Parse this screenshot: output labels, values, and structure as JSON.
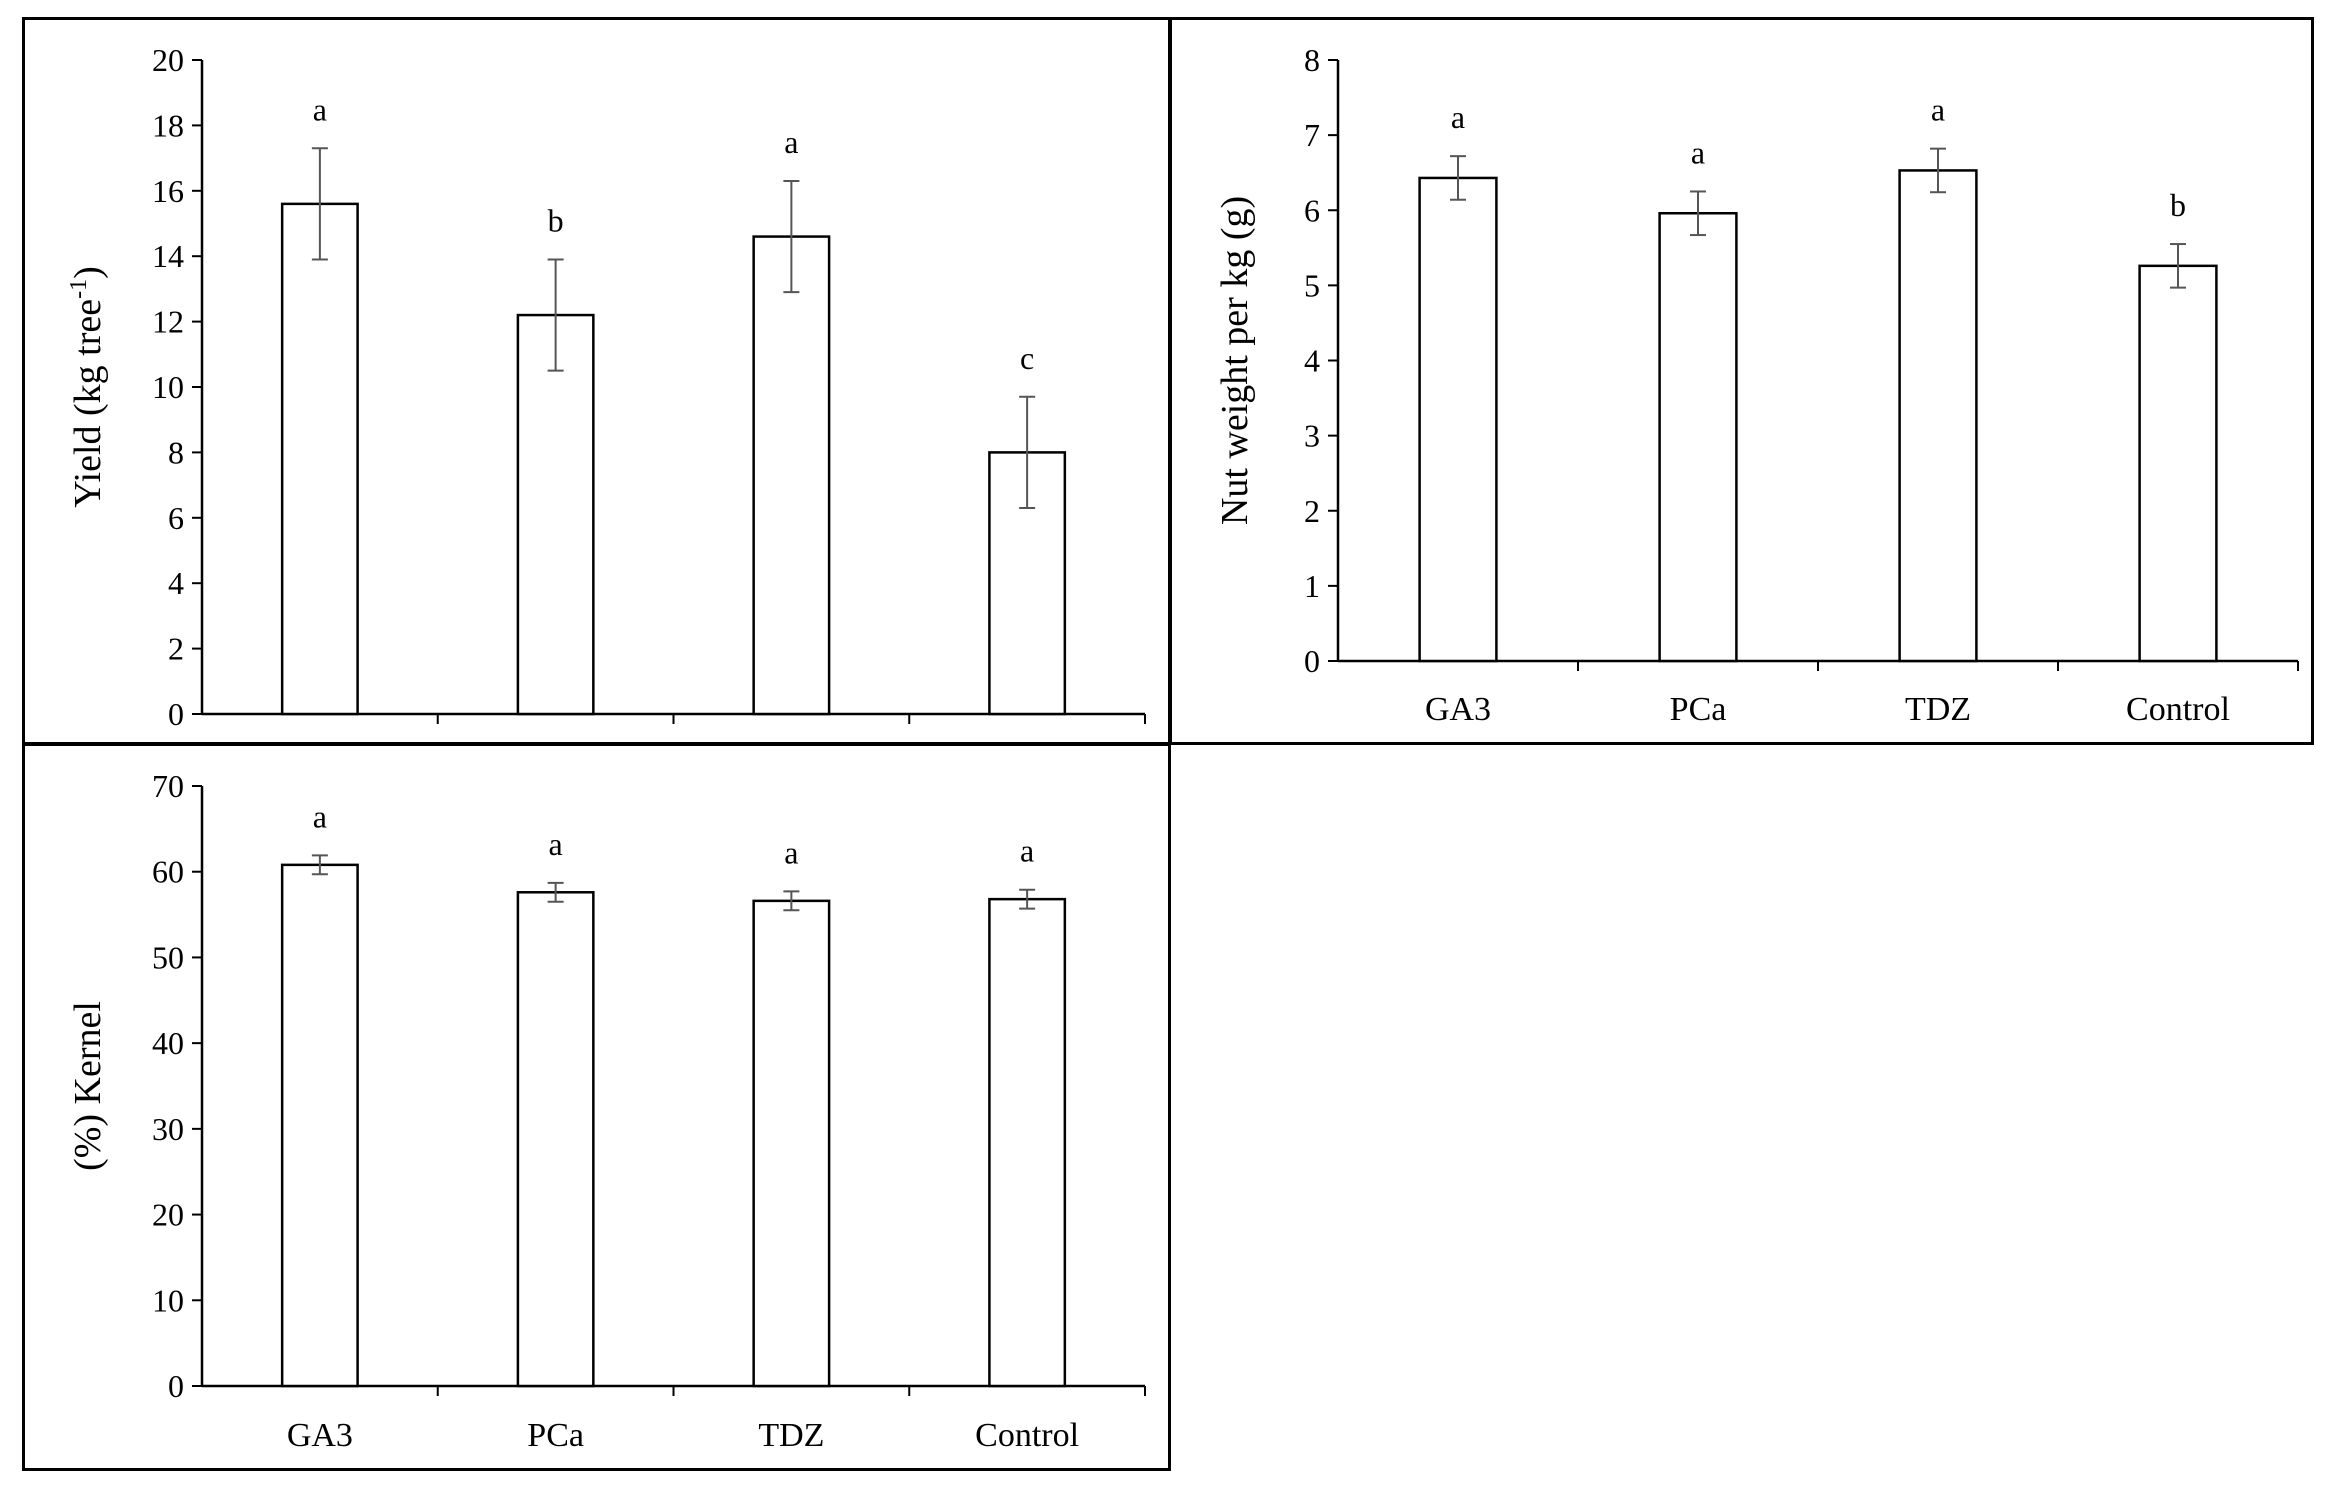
{
  "chart_data": [
    {
      "type": "bar",
      "id": "yield",
      "categories": [
        "GA3",
        "PCa",
        "TDZ",
        "Control"
      ],
      "show_category_labels": false,
      "values": [
        15.6,
        12.2,
        14.6,
        8.0
      ],
      "errors": [
        1.7,
        1.7,
        1.7,
        1.7
      ],
      "significance": [
        "a",
        "b",
        "a",
        "c"
      ],
      "ylabel": "Yield (kg tree",
      "ylabel_sup": "-1",
      "ylabel_close": ")",
      "ylim": [
        0,
        20
      ],
      "yticks": [
        0,
        2,
        4,
        6,
        8,
        10,
        12,
        14,
        16,
        18,
        20
      ],
      "grid": false
    },
    {
      "type": "bar",
      "id": "nut-weight",
      "categories": [
        "GA3",
        "PCa",
        "TDZ",
        "Control"
      ],
      "show_category_labels": true,
      "values": [
        6.43,
        5.96,
        6.53,
        5.26
      ],
      "errors": [
        0.29,
        0.29,
        0.29,
        0.29
      ],
      "significance": [
        "a",
        "a",
        "a",
        "b"
      ],
      "ylabel": "Nut weight per kg (g)",
      "ylim": [
        0,
        8
      ],
      "yticks": [
        0,
        1,
        2,
        3,
        4,
        5,
        6,
        7,
        8
      ],
      "grid": false
    },
    {
      "type": "bar",
      "id": "kernel",
      "categories": [
        "GA3",
        "PCa",
        "TDZ",
        "Control"
      ],
      "show_category_labels": true,
      "values": [
        60.8,
        57.6,
        56.6,
        56.8
      ],
      "errors": [
        1.1,
        1.1,
        1.1,
        1.1
      ],
      "significance": [
        "a",
        "a",
        "a",
        "a"
      ],
      "ylabel": "(%) Kernel",
      "ylim": [
        0,
        70
      ],
      "yticks": [
        0,
        10,
        20,
        30,
        40,
        50,
        60,
        70
      ],
      "grid": false
    }
  ],
  "colors": {
    "bar_fill": "#ffffff",
    "bar_stroke": "#000000",
    "axis": "#000000",
    "error_bar": "#555555"
  }
}
